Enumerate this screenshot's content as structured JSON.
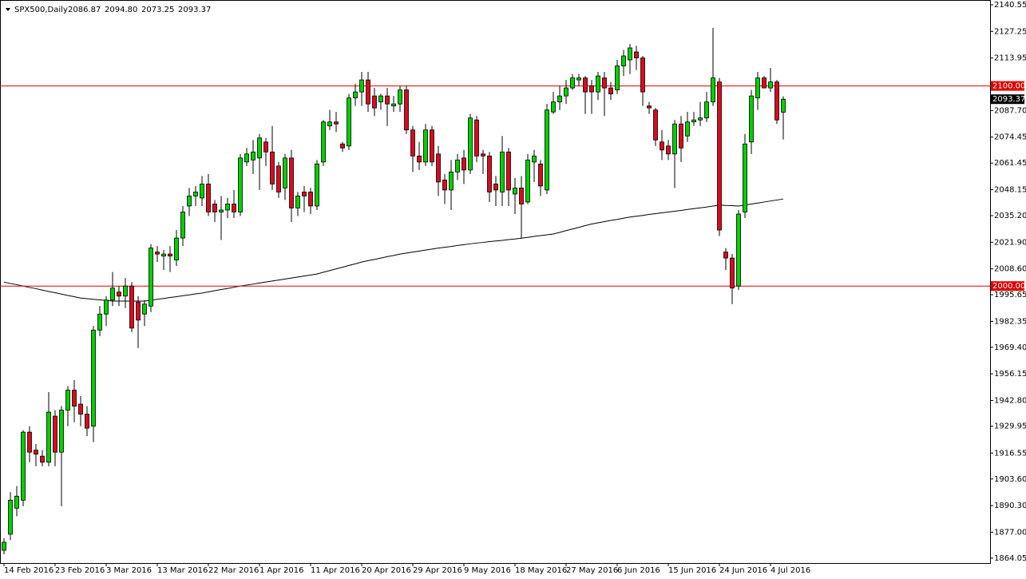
{
  "chart_data": {
    "type": "candlestick",
    "title": "SPX500,Daily",
    "last_bar_labels": [
      "2086.87",
      "2094.80",
      "2073.25",
      "2093.37"
    ],
    "categories": [
      "14 Feb 2016",
      null,
      null,
      null,
      null,
      null,
      null,
      null,
      "23 Feb 2016",
      null,
      null,
      null,
      null,
      null,
      null,
      null,
      "3 Mar 2016",
      null,
      null,
      null,
      null,
      null,
      null,
      null,
      "13 Mar 2016",
      null,
      null,
      null,
      null,
      null,
      null,
      null,
      "22 Mar 2016",
      null,
      null,
      null,
      null,
      null,
      null,
      null,
      "1 Apr 2016",
      null,
      null,
      null,
      null,
      null,
      null,
      null,
      "11 Apr 2016",
      null,
      null,
      null,
      null,
      null,
      null,
      null,
      "20 Apr 2016",
      null,
      null,
      null,
      null,
      null,
      null,
      null,
      "29 Apr 2016",
      null,
      null,
      null,
      null,
      null,
      null,
      null,
      "9 May 2016",
      null,
      null,
      null,
      null,
      null,
      null,
      null,
      "18 May 2016",
      null,
      null,
      null,
      null,
      null,
      null,
      null,
      "27 May 2016",
      null,
      null,
      null,
      null,
      null,
      null,
      null,
      "6 Jun 2016",
      null,
      null,
      null,
      null,
      null,
      null,
      null,
      "15 Jun 2016",
      null,
      null,
      null,
      null,
      null,
      null,
      null,
      "24 Jun 2016",
      null,
      null,
      null,
      null,
      null,
      null,
      null,
      "4 Jul 2016",
      null,
      null
    ],
    "open": [
      1868,
      1876,
      1889,
      1893,
      1927,
      1918,
      1915,
      1912,
      1935,
      1917,
      1938,
      1948,
      1941,
      1936,
      1930,
      1978,
      1986,
      1993,
      1997,
      1995,
      2000,
      1992,
      1986,
      1990,
      2017,
      2015,
      2016,
      2013,
      2024,
      2040,
      2045,
      2044,
      2051,
      2041,
      2037,
      2038,
      2041,
      2037,
      2062,
      2063,
      2064,
      2072,
      2067,
      2060,
      2049,
      2064,
      2039,
      2047,
      2047,
      2040,
      2062,
      2080,
      2082,
      2071,
      2070,
      2094,
      2097,
      2103,
      2095,
      2092,
      2095,
      2090,
      2091,
      2098,
      2078,
      2065,
      2062,
      2078,
      2066,
      2053,
      2048,
      2057,
      2064,
      2058,
      2083,
      2066,
      2065,
      2051,
      2047,
      2067,
      2046,
      2049,
      2042,
      2062,
      2061,
      2048,
      2087,
      2092,
      2095,
      2099,
      2103,
      2104,
      2100,
      2097,
      2104,
      2099,
      2098,
      2110,
      2113,
      2117,
      2114,
      2090,
      2088,
      2072,
      2070,
      2066,
      2081,
      2075,
      2082,
      2083,
      2084,
      2092,
      2102,
      2017,
      2014,
      2000,
      2037,
      2072,
      2094,
      2104,
      2099,
      2102,
      2086.87
    ],
    "high": [
      1874,
      1897,
      1900,
      1928,
      1930,
      1921,
      1918,
      1947,
      1938,
      1940,
      1950,
      1953,
      1945,
      1940,
      1980,
      1990,
      1995,
      2007,
      2000,
      2004,
      2002,
      1995,
      1993,
      2021,
      2020,
      2018,
      2020,
      2028,
      2040,
      2049,
      2050,
      2055,
      2056,
      2043,
      2045,
      2044,
      2048,
      2066,
      2069,
      2073,
      2076,
      2074,
      2080,
      2062,
      2066,
      2068,
      2047,
      2050,
      2049,
      2063,
      2083,
      2088,
      2087,
      2072,
      2096,
      2101,
      2107,
      2107,
      2099,
      2096,
      2099,
      2095,
      2100,
      2100,
      2080,
      2072,
      2081,
      2080,
      2070,
      2056,
      2063,
      2066,
      2068,
      2086,
      2085,
      2068,
      2067,
      2055,
      2075,
      2069,
      2054,
      2055,
      2066,
      2068,
      2063,
      2091,
      2097,
      2100,
      2103,
      2106,
      2106,
      2105,
      2103,
      2107,
      2107,
      2102,
      2113,
      2118,
      2121,
      2120,
      2115,
      2092,
      2089,
      2078,
      2073,
      2083,
      2085,
      2087,
      2087,
      2092,
      2097,
      2129,
      2104,
      2019,
      2016,
      2038,
      2076,
      2098,
      2107,
      2105,
      2109,
      2103,
      2094.8
    ],
    "low": [
      1866,
      1873,
      1885,
      1890,
      1912,
      1910,
      1910,
      1910,
      1910,
      1890,
      1930,
      1932,
      1930,
      1925,
      1922,
      1975,
      1980,
      1990,
      1990,
      1989,
      1977,
      1969,
      1980,
      1987,
      2012,
      2008,
      2007,
      2010,
      2020,
      2035,
      2040,
      2040,
      2035,
      2032,
      2023,
      2034,
      2034,
      2035,
      2060,
      2056,
      2048,
      2060,
      2048,
      2044,
      2043,
      2032,
      2035,
      2037,
      2036,
      2038,
      2060,
      2078,
      2077,
      2067,
      2068,
      2090,
      2090,
      2087,
      2085,
      2088,
      2080,
      2087,
      2087,
      2076,
      2057,
      2058,
      2060,
      2060,
      2045,
      2041,
      2038,
      2053,
      2051,
      2056,
      2062,
      2056,
      2042,
      2040,
      2040,
      2040,
      2036,
      2024,
      2041,
      2052,
      2045,
      2046,
      2086,
      2088,
      2091,
      2098,
      2100,
      2086,
      2086,
      2093,
      2085,
      2093,
      2096,
      2105,
      2106,
      2108,
      2090,
      2086,
      2070,
      2063,
      2063,
      2049,
      2062,
      2072,
      2080,
      2080,
      2082,
      2090,
      2025,
      2008,
      1991,
      1998,
      2034,
      2066,
      2088,
      2099,
      2097,
      2081,
      2073.25
    ],
    "close": [
      1872,
      1893,
      1895,
      1927,
      1917,
      1916,
      1912,
      1937,
      1917,
      1938,
      1948,
      1940,
      1936,
      1929,
      1978,
      1986,
      1993,
      1999,
      1995,
      2000,
      1979,
      1983,
      1991,
      2019,
      2016,
      2016,
      2015,
      2024,
      2037,
      2045,
      2047,
      2051,
      2037,
      2037,
      2038,
      2041,
      2037,
      2064,
      2066,
      2067,
      2074,
      2067,
      2051,
      2047,
      2064,
      2039,
      2045,
      2045,
      2040,
      2061,
      2082,
      2082,
      2081,
      2069,
      2094,
      2097,
      2103,
      2091,
      2089,
      2095,
      2091,
      2091,
      2098,
      2078,
      2065,
      2062,
      2078,
      2062,
      2052,
      2048,
      2057,
      2063,
      2058,
      2084,
      2065,
      2065,
      2047,
      2048,
      2067,
      2048,
      2049,
      2041,
      2063,
      2065,
      2050,
      2088,
      2092,
      2095,
      2099,
      2104,
      2104,
      2097,
      2097,
      2105,
      2099,
      2096,
      2110,
      2115,
      2119,
      2114,
      2097,
      2089,
      2073,
      2068,
      2066,
      2081,
      2069,
      2082,
      2083,
      2084,
      2092,
      2104,
      2028,
      2014,
      1999,
      2036,
      2071,
      2095,
      2104,
      2099,
      2102,
      2083,
      2093.37
    ],
    "up_color": "#00d200",
    "down_color": "#dc0a1e",
    "ma": {
      "color": "#000000",
      "values": [
        2002,
        2001.3,
        2000.7,
        2000,
        1999.3,
        1998.7,
        1998,
        1997.3,
        1996.7,
        1996,
        1995.3,
        1994.7,
        1994,
        1993.7,
        1993.4,
        1993.1,
        1992.8,
        1992.5,
        1992.5,
        1992.5,
        1992.5,
        1992.5,
        1992.5,
        1992.9,
        1993.4,
        1993.8,
        1994.3,
        1994.7,
        1995.2,
        1995.6,
        1996.1,
        1996.5,
        1997.1,
        1997.7,
        1998.3,
        1998.8,
        1999.4,
        2000,
        2000.5,
        2001,
        2001.5,
        2002,
        2002.5,
        2003,
        2003.5,
        2004,
        2004.5,
        2005,
        2005.5,
        2006,
        2006.9,
        2007.7,
        2008.6,
        2009.4,
        2010.3,
        2011.1,
        2012,
        2012.7,
        2013.3,
        2014,
        2014.7,
        2015.3,
        2016,
        2016.5,
        2017,
        2017.5,
        2018,
        2018.5,
        2019,
        2019.4,
        2019.8,
        2020.3,
        2020.7,
        2021.1,
        2021.5,
        2021.8,
        2022.2,
        2022.5,
        2022.8,
        2023.2,
        2023.5,
        2023.9,
        2024.3,
        2024.8,
        2025.2,
        2025.6,
        2026,
        2026.8,
        2027.7,
        2028.5,
        2029.3,
        2030.2,
        2031,
        2031.6,
        2032.2,
        2032.8,
        2033.3,
        2033.9,
        2034.5,
        2034.9,
        2035.3,
        2035.8,
        2036.2,
        2036.6,
        2037,
        2037.4,
        2037.8,
        2038.3,
        2038.7,
        2039.1,
        2039.5,
        2040,
        2040.5,
        2040.3,
        2040.2,
        2040,
        2040.5,
        2041,
        2041.5,
        2042,
        2042.5,
        2043,
        2043.5
      ]
    },
    "hlines": [
      {
        "value": 2100,
        "label": "2100.00",
        "color": "#e00000"
      },
      {
        "value": 2000,
        "label": "2000.00",
        "color": "#e00000"
      }
    ],
    "ylim": [
      1861.6,
      2142.94
    ],
    "yticks": [
      2140.55,
      2127.25,
      2113.95,
      {
        "value": 2087.7,
        "label": "2087.70"
      },
      2074.45,
      2061.45,
      2048.15,
      {
        "value": 2035.2,
        "label": "2035.20"
      },
      {
        "value": 2021.9,
        "label": "2021.90"
      },
      {
        "value": 2008.6,
        "label": "2008.60"
      },
      1995.65,
      1982.35,
      {
        "value": 1969.4,
        "label": "1969.40"
      },
      1956.15,
      {
        "value": 1942.8,
        "label": "1942.80"
      },
      1929.95,
      1916.55,
      {
        "value": 1903.6,
        "label": "1903.60"
      },
      {
        "value": 1890.3,
        "label": "1890.30"
      },
      {
        "value": 1877,
        "label": "1877.00"
      },
      1864.05
    ]
  }
}
